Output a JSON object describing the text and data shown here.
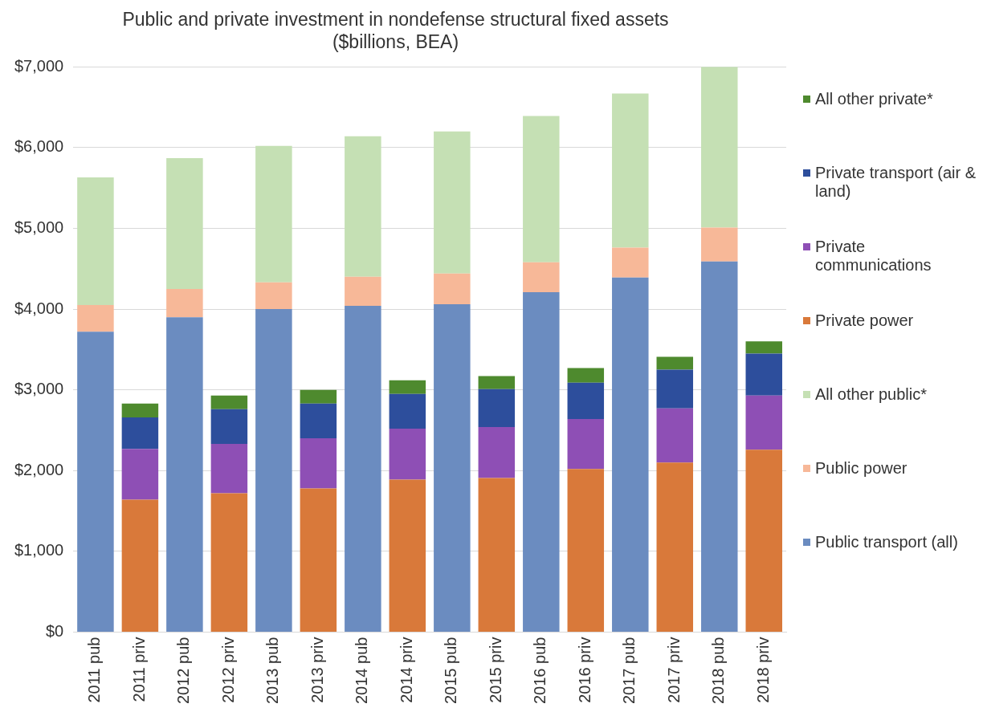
{
  "chart_data": {
    "type": "bar",
    "stacked": true,
    "title": "Public and private investment in nondefense structural fixed assets",
    "subtitle": "($billions, BEA)",
    "categories": [
      "2011 pub",
      "2011 priv",
      "2012 pub",
      "2012 priv",
      "2013 pub",
      "2013 priv",
      "2014 pub",
      "2014 priv",
      "2015 pub",
      "2015 priv",
      "2016 pub",
      "2016 priv",
      "2017 pub",
      "2017 priv",
      "2018 pub",
      "2018 priv"
    ],
    "series": [
      {
        "name": "Public transport (all)",
        "color": "#6b8cc0",
        "values": [
          3720,
          null,
          3900,
          null,
          4000,
          null,
          4040,
          null,
          4060,
          null,
          4210,
          null,
          4390,
          null,
          4590,
          null
        ]
      },
      {
        "name": "Public power",
        "color": "#f7b898",
        "values": [
          330,
          null,
          350,
          null,
          330,
          null,
          360,
          null,
          380,
          null,
          370,
          null,
          370,
          null,
          420,
          null
        ]
      },
      {
        "name": "All other public*",
        "color": "#c5e0b4",
        "values": [
          1580,
          null,
          1620,
          null,
          1690,
          null,
          1740,
          null,
          1760,
          null,
          1810,
          null,
          1910,
          null,
          1990,
          null
        ]
      },
      {
        "name": "Private power",
        "color": "#d9793a",
        "values": [
          null,
          1640,
          null,
          1720,
          null,
          1780,
          null,
          1890,
          null,
          1910,
          null,
          2020,
          null,
          2100,
          null,
          2260
        ]
      },
      {
        "name": "Private communications",
        "color": "#8e4fb5",
        "values": [
          null,
          630,
          null,
          610,
          null,
          620,
          null,
          630,
          null,
          630,
          null,
          620,
          null,
          670,
          null,
          670
        ]
      },
      {
        "name": "Private transport (air & land)",
        "color": "#2d4e9c",
        "values": [
          null,
          390,
          null,
          430,
          null,
          430,
          null,
          430,
          null,
          470,
          null,
          450,
          null,
          480,
          null,
          520
        ]
      },
      {
        "name": "All other private*",
        "color": "#4e8a2e",
        "values": [
          null,
          170,
          null,
          170,
          null,
          170,
          null,
          170,
          null,
          160,
          null,
          180,
          null,
          160,
          null,
          150
        ]
      }
    ],
    "ylim": [
      0,
      7000
    ],
    "yticks": [
      {
        "value": 0,
        "label": "$0"
      },
      {
        "value": 1000,
        "label": "$1,000"
      },
      {
        "value": 2000,
        "label": "$2,000"
      },
      {
        "value": 3000,
        "label": "$3,000"
      },
      {
        "value": 4000,
        "label": "$4,000"
      },
      {
        "value": 5000,
        "label": "$5,000"
      },
      {
        "value": 6000,
        "label": "$6,000"
      },
      {
        "value": 7000,
        "label": "$7,000"
      }
    ],
    "grid": "y",
    "legend": "right"
  }
}
